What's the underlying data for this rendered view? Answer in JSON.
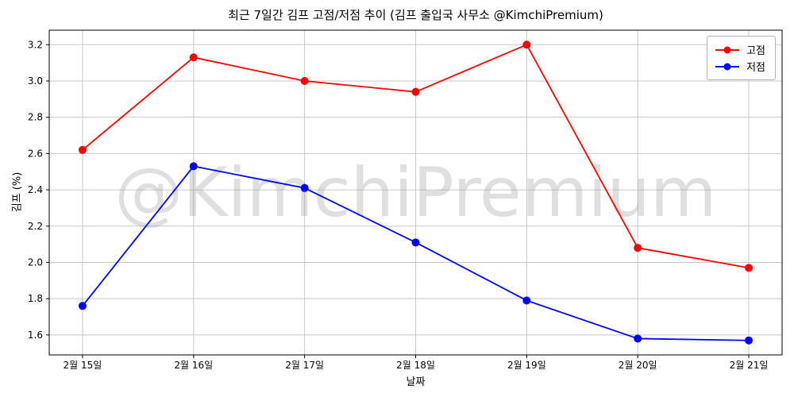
{
  "figure": {
    "title": "최근 7일간 김프 고점/저점 추이 (김프 출입국 사무소 @KimchiPremium)",
    "watermark": "@KimchiPremium"
  },
  "chart_data": {
    "type": "line",
    "title": "최근 7일간 김프 고점/저점 추이 (김프 출입국 사무소 @KimchiPremium)",
    "xlabel": "날짜",
    "ylabel": "김프 (%)",
    "categories": [
      "2월 15일",
      "2월 16일",
      "2월 17일",
      "2월 18일",
      "2월 19일",
      "2월 20일",
      "2월 21일"
    ],
    "series": [
      {
        "name": "고점",
        "color": "#ff0000",
        "values": [
          2.62,
          3.13,
          3.0,
          2.94,
          3.2,
          2.08,
          1.97
        ]
      },
      {
        "name": "저점",
        "color": "#0000ff",
        "values": [
          1.76,
          2.53,
          2.41,
          2.11,
          1.79,
          1.58,
          1.57
        ]
      }
    ],
    "yticks": [
      1.6,
      1.8,
      2.0,
      2.2,
      2.4,
      2.6,
      2.8,
      3.0,
      3.2
    ],
    "ylim": [
      1.49,
      3.28
    ],
    "grid": true,
    "legend_position": "upper right",
    "watermark": "@KimchiPremium",
    "colors": {
      "grid": "#c8c8c8",
      "spine": "#000000",
      "watermark": "rgba(128,128,128,0.25)"
    }
  }
}
